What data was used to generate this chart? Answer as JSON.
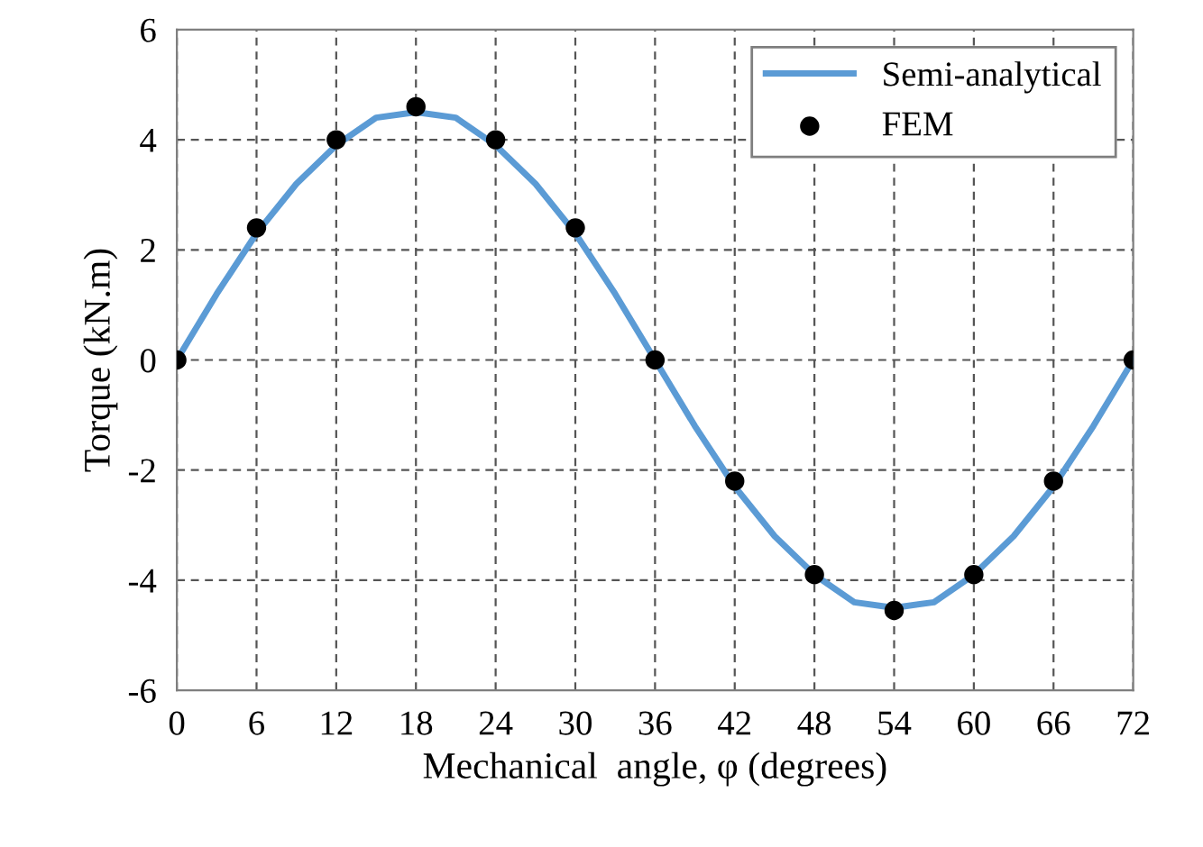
{
  "chart_data": {
    "type": "line",
    "xlabel": "Mechanical  angle, φ (degrees)",
    "ylabel": "Torque (kN.m)",
    "xlim": [
      0,
      72
    ],
    "xticks": [
      0,
      6,
      12,
      18,
      24,
      30,
      36,
      42,
      48,
      54,
      60,
      66,
      72
    ],
    "ylim": [
      -6,
      6
    ],
    "yticks": [
      -6,
      -4,
      -2,
      0,
      2,
      4,
      6
    ],
    "grid": true,
    "legend": "top right",
    "series": [
      {
        "name": "Semi-analytical",
        "color": "#5b9bd5",
        "marker": "none",
        "x": [
          0,
          3,
          6,
          9,
          12,
          15,
          18,
          21,
          24,
          27,
          30,
          33,
          36,
          39,
          42,
          45,
          48,
          51,
          54,
          57,
          60,
          63,
          66,
          69,
          72
        ],
        "values": [
          0,
          1.2,
          2.3,
          3.2,
          3.9,
          4.4,
          4.5,
          4.4,
          3.9,
          3.2,
          2.3,
          1.2,
          0,
          -1.2,
          -2.3,
          -3.2,
          -3.9,
          -4.4,
          -4.5,
          -4.4,
          -3.9,
          -3.2,
          -2.3,
          -1.2,
          0
        ]
      },
      {
        "name": "FEM",
        "type": "scatter",
        "color": "#000000",
        "marker": "circle",
        "x": [
          0,
          6,
          12,
          18,
          24,
          30,
          36,
          42,
          48,
          54,
          60,
          66,
          72
        ],
        "values": [
          0,
          2.4,
          4.0,
          4.6,
          4.0,
          2.4,
          0,
          -2.2,
          -3.9,
          -4.55,
          -3.9,
          -2.2,
          0
        ]
      }
    ]
  }
}
